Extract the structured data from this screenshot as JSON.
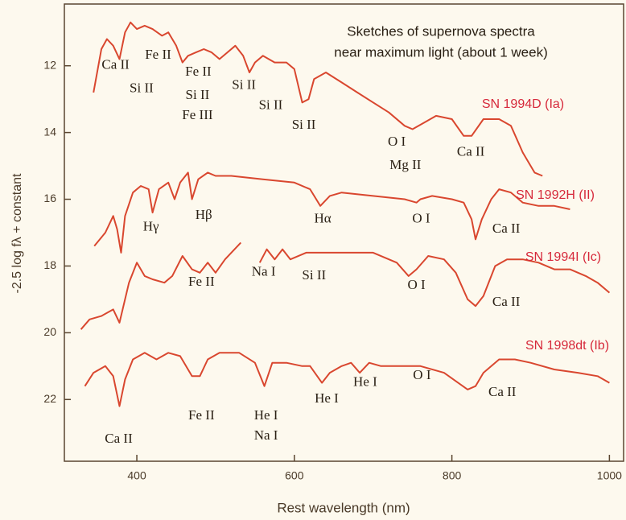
{
  "chart_data": {
    "type": "line",
    "title": [
      "Sketches of supernova spectra",
      "near maximum light (about 1 week)"
    ],
    "x_label": "Rest wavelength (nm)",
    "y_label": "-2.5 log fλ + constant",
    "xlim": [
      308,
      1018
    ],
    "ylim": [
      10.15,
      23.85
    ],
    "y_inverted": true,
    "xticks": [
      400,
      600,
      800,
      1000
    ],
    "yticks": [
      12,
      14,
      16,
      18,
      20,
      22
    ],
    "series": [
      {
        "name": "SN 1994D (Ia)",
        "color": "#d9472f",
        "x": [
          345,
          355,
          362,
          370,
          378,
          385,
          392,
          400,
          410,
          420,
          432,
          440,
          450,
          458,
          465,
          475,
          485,
          495,
          505,
          515,
          525,
          535,
          543,
          550,
          560,
          575,
          590,
          600,
          610,
          618,
          625,
          640,
          660,
          680,
          700,
          720,
          740,
          750,
          765,
          780,
          800,
          815,
          825,
          840,
          860,
          875,
          890,
          905,
          915
        ],
        "values": [
          12.8,
          11.5,
          11.2,
          11.4,
          11.8,
          11.0,
          10.7,
          10.9,
          10.8,
          10.9,
          11.1,
          11.0,
          11.4,
          11.9,
          11.7,
          11.6,
          11.5,
          11.6,
          11.8,
          11.6,
          11.4,
          11.7,
          12.2,
          11.9,
          11.7,
          11.9,
          11.9,
          12.1,
          13.1,
          13.0,
          12.4,
          12.2,
          12.5,
          12.8,
          13.1,
          13.4,
          13.8,
          13.9,
          13.7,
          13.5,
          13.6,
          14.1,
          14.1,
          13.6,
          13.6,
          13.8,
          14.6,
          15.2,
          15.3
        ]
      },
      {
        "name": "SN 1992H (II)",
        "color": "#d9472f",
        "x": [
          346,
          360,
          370,
          375,
          380,
          385,
          395,
          405,
          415,
          420,
          428,
          440,
          448,
          455,
          465,
          470,
          478,
          490,
          500,
          520,
          560,
          600,
          620,
          633,
          645,
          660,
          700,
          740,
          755,
          760,
          775,
          800,
          815,
          825,
          830,
          838,
          850,
          860,
          875,
          890,
          910,
          930,
          950
        ],
        "values": [
          17.4,
          17.0,
          16.5,
          16.9,
          17.6,
          16.5,
          15.8,
          15.6,
          15.7,
          16.4,
          15.7,
          15.5,
          16.0,
          15.5,
          15.2,
          16.0,
          15.4,
          15.2,
          15.3,
          15.3,
          15.4,
          15.5,
          15.7,
          16.2,
          15.9,
          15.8,
          15.9,
          16.0,
          16.1,
          16.0,
          15.9,
          16.0,
          16.1,
          16.6,
          17.2,
          16.6,
          16.0,
          15.7,
          15.8,
          16.1,
          16.2,
          16.2,
          16.3
        ]
      },
      {
        "name": "SN 1994I (Ic)",
        "color": "#d9472f",
        "x": [
          329,
          340,
          355,
          370,
          378,
          390,
          400,
          410,
          420,
          435,
          445,
          458,
          470,
          480,
          490,
          500,
          512,
          532,
          544,
          556,
          565,
          575,
          585,
          595,
          615,
          635,
          660,
          700,
          730,
          745,
          755,
          770,
          790,
          805,
          820,
          830,
          840,
          855,
          870,
          890,
          910,
          930,
          950,
          970,
          985,
          1000
        ],
        "values": [
          19.9,
          19.6,
          19.5,
          19.3,
          19.7,
          18.5,
          17.9,
          18.3,
          18.4,
          18.5,
          18.3,
          17.7,
          18.1,
          18.2,
          17.9,
          18.2,
          17.8,
          17.3,
          null,
          17.9,
          17.5,
          17.8,
          17.5,
          17.8,
          17.6,
          17.6,
          17.6,
          17.6,
          17.9,
          18.3,
          18.1,
          17.7,
          17.8,
          18.2,
          19.0,
          19.2,
          18.9,
          18.0,
          17.8,
          17.8,
          17.9,
          18.1,
          18.1,
          18.3,
          18.5,
          18.8
        ]
      },
      {
        "name": "SN 1998dt (Ib)",
        "color": "#d9472f",
        "x": [
          334,
          345,
          360,
          370,
          378,
          385,
          395,
          410,
          425,
          440,
          455,
          470,
          480,
          490,
          505,
          530,
          550,
          562,
          572,
          590,
          610,
          620,
          635,
          645,
          660,
          672,
          683,
          695,
          710,
          730,
          760,
          790,
          820,
          830,
          840,
          860,
          880,
          900,
          930,
          960,
          985,
          1000
        ],
        "values": [
          21.6,
          21.2,
          21.0,
          21.3,
          22.2,
          21.4,
          20.8,
          20.6,
          20.8,
          20.6,
          20.7,
          21.3,
          21.3,
          20.8,
          20.6,
          20.6,
          20.9,
          21.6,
          20.9,
          20.9,
          21.0,
          21.0,
          21.5,
          21.2,
          21.0,
          20.9,
          21.2,
          20.9,
          21.0,
          21.0,
          21.0,
          21.2,
          21.7,
          21.6,
          21.2,
          20.8,
          20.8,
          20.9,
          21.1,
          21.2,
          21.3,
          21.5
        ]
      }
    ],
    "annotations": [
      {
        "text": "Ca II",
        "x": 373,
        "y": 12.0
      },
      {
        "text": "Fe II",
        "x": 427,
        "y": 11.7
      },
      {
        "text": "Si II",
        "x": 406,
        "y": 12.7
      },
      {
        "text": "Fe II",
        "x": 478,
        "y": 12.2
      },
      {
        "text": "Si II",
        "x": 477,
        "y": 12.9
      },
      {
        "text": "Fe III",
        "x": 477,
        "y": 13.5
      },
      {
        "text": "Si II",
        "x": 536,
        "y": 12.6
      },
      {
        "text": "Si II",
        "x": 570,
        "y": 13.2
      },
      {
        "text": "Si II",
        "x": 612,
        "y": 13.8
      },
      {
        "text": "O I",
        "x": 730,
        "y": 14.3
      },
      {
        "text": "Mg II",
        "x": 741,
        "y": 15.0
      },
      {
        "text": "Ca II",
        "x": 824,
        "y": 14.6
      },
      {
        "text": "Hγ",
        "x": 418,
        "y": 16.85
      },
      {
        "text": "Hβ",
        "x": 485,
        "y": 16.5
      },
      {
        "text": "Hα",
        "x": 636,
        "y": 16.6
      },
      {
        "text": "O I",
        "x": 761,
        "y": 16.6
      },
      {
        "text": "Ca II",
        "x": 869,
        "y": 16.9
      },
      {
        "text": "Na I",
        "x": 561,
        "y": 18.2
      },
      {
        "text": "Si II",
        "x": 625,
        "y": 18.3
      },
      {
        "text": "Fe II",
        "x": 482,
        "y": 18.5
      },
      {
        "text": "O I",
        "x": 755,
        "y": 18.6
      },
      {
        "text": "Ca II",
        "x": 869,
        "y": 19.1
      },
      {
        "text": "Fe II",
        "x": 482,
        "y": 22.5
      },
      {
        "text": "He I",
        "x": 564,
        "y": 22.5
      },
      {
        "text": "Na I",
        "x": 564,
        "y": 23.1
      },
      {
        "text": "He I",
        "x": 641,
        "y": 22.0
      },
      {
        "text": "He I",
        "x": 690,
        "y": 21.5
      },
      {
        "text": "O I",
        "x": 762,
        "y": 21.3
      },
      {
        "text": "Ca II",
        "x": 864,
        "y": 21.8
      },
      {
        "text": "Ca II",
        "x": 377,
        "y": 23.2
      }
    ]
  }
}
